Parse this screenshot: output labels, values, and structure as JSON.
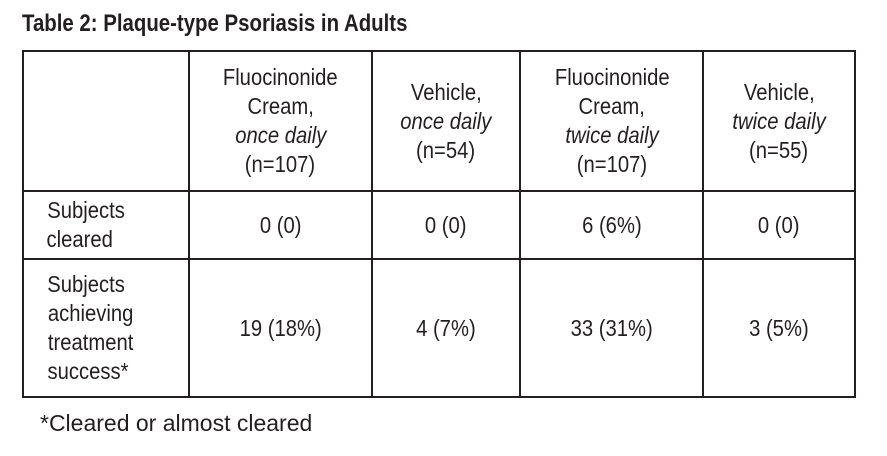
{
  "title": "Table 2: Plaque-type Psoriasis in Adults",
  "columns": [
    {
      "l1": "Fluocinonide",
      "l2": "Cream,",
      "freq": "once daily",
      "n": "(n=107)"
    },
    {
      "l1": "Vehicle,",
      "l2": "",
      "freq": "once daily",
      "n": "(n=54)"
    },
    {
      "l1": "Fluocinonide",
      "l2": "Cream,",
      "freq": "twice daily",
      "n": "(n=107)"
    },
    {
      "l1": "Vehicle,",
      "l2": "",
      "freq": "twice daily",
      "n": "(n=55)"
    }
  ],
  "rows": [
    {
      "label": [
        "Subjects",
        "cleared"
      ],
      "values": [
        "0 (0)",
        "0 (0)",
        "6 (6%)",
        "0 (0)"
      ]
    },
    {
      "label": [
        "Subjects",
        "achieving",
        "treatment",
        "success*"
      ],
      "values": [
        "19 (18%)",
        "4 (7%)",
        "33 (31%)",
        "3 (5%)"
      ]
    }
  ],
  "footnote": "*Cleared or almost cleared"
}
